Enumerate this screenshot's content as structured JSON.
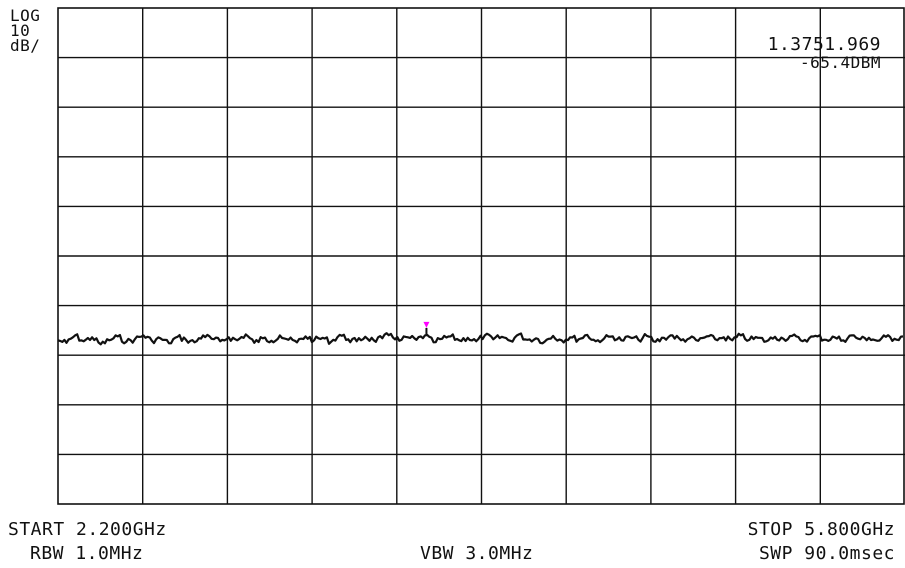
{
  "scale": {
    "line1": "LOG",
    "line2": "10",
    "line3": "dB/"
  },
  "marker": {
    "readout_freq": "1.3751.969",
    "readout_level": "-65.4DBM"
  },
  "footer": {
    "start": "START 2.200GHz",
    "stop": "STOP 5.800GHz",
    "rbw": "RBW 1.0MHz",
    "vbw": "VBW 3.0MHz",
    "swp": "SWP 90.0msec"
  },
  "chart_data": {
    "type": "line",
    "x_range_ghz": [
      2.2,
      5.8
    ],
    "y_scale": "log 10 dB/div",
    "grid": true,
    "grid_divisions": {
      "x": 10,
      "y": 10
    },
    "series": [
      {
        "values_div_from_top": [
          6.7,
          6.75,
          6.6,
          6.72,
          6.64,
          6.78,
          6.7,
          6.62,
          6.73,
          6.68,
          6.6,
          6.71,
          6.66,
          6.76,
          6.63,
          6.69,
          6.74,
          6.6,
          6.67,
          6.72,
          6.64,
          6.7,
          6.58,
          6.75,
          6.66,
          6.71,
          6.6,
          6.69,
          6.74,
          6.62,
          6.7,
          6.65,
          6.73,
          6.59,
          6.68,
          6.72,
          6.63,
          6.7,
          6.66,
          6.57,
          6.71,
          6.64,
          6.69,
          6.6,
          6.74,
          6.67,
          6.62,
          6.7,
          6.65,
          6.72,
          6.6,
          6.68,
          6.63,
          6.71,
          6.58,
          6.69,
          6.66,
          6.73,
          6.61,
          6.7,
          6.64,
          6.68,
          6.59,
          6.72,
          6.66,
          6.62,
          6.7,
          6.64,
          6.69,
          6.61,
          6.73,
          6.65,
          6.6,
          6.7,
          6.66,
          6.71,
          6.62,
          6.68,
          6.64,
          6.7,
          6.6,
          6.69,
          6.65,
          6.72,
          6.63,
          6.67,
          6.61,
          6.7,
          6.66,
          6.62,
          6.69,
          6.64,
          6.7,
          6.6,
          6.68,
          6.65,
          6.71,
          6.63,
          6.67,
          6.62
        ]
      }
    ],
    "marker": {
      "x_fraction": 0.435,
      "y_div_from_top": 6.45,
      "color": "#ff00ff"
    }
  }
}
